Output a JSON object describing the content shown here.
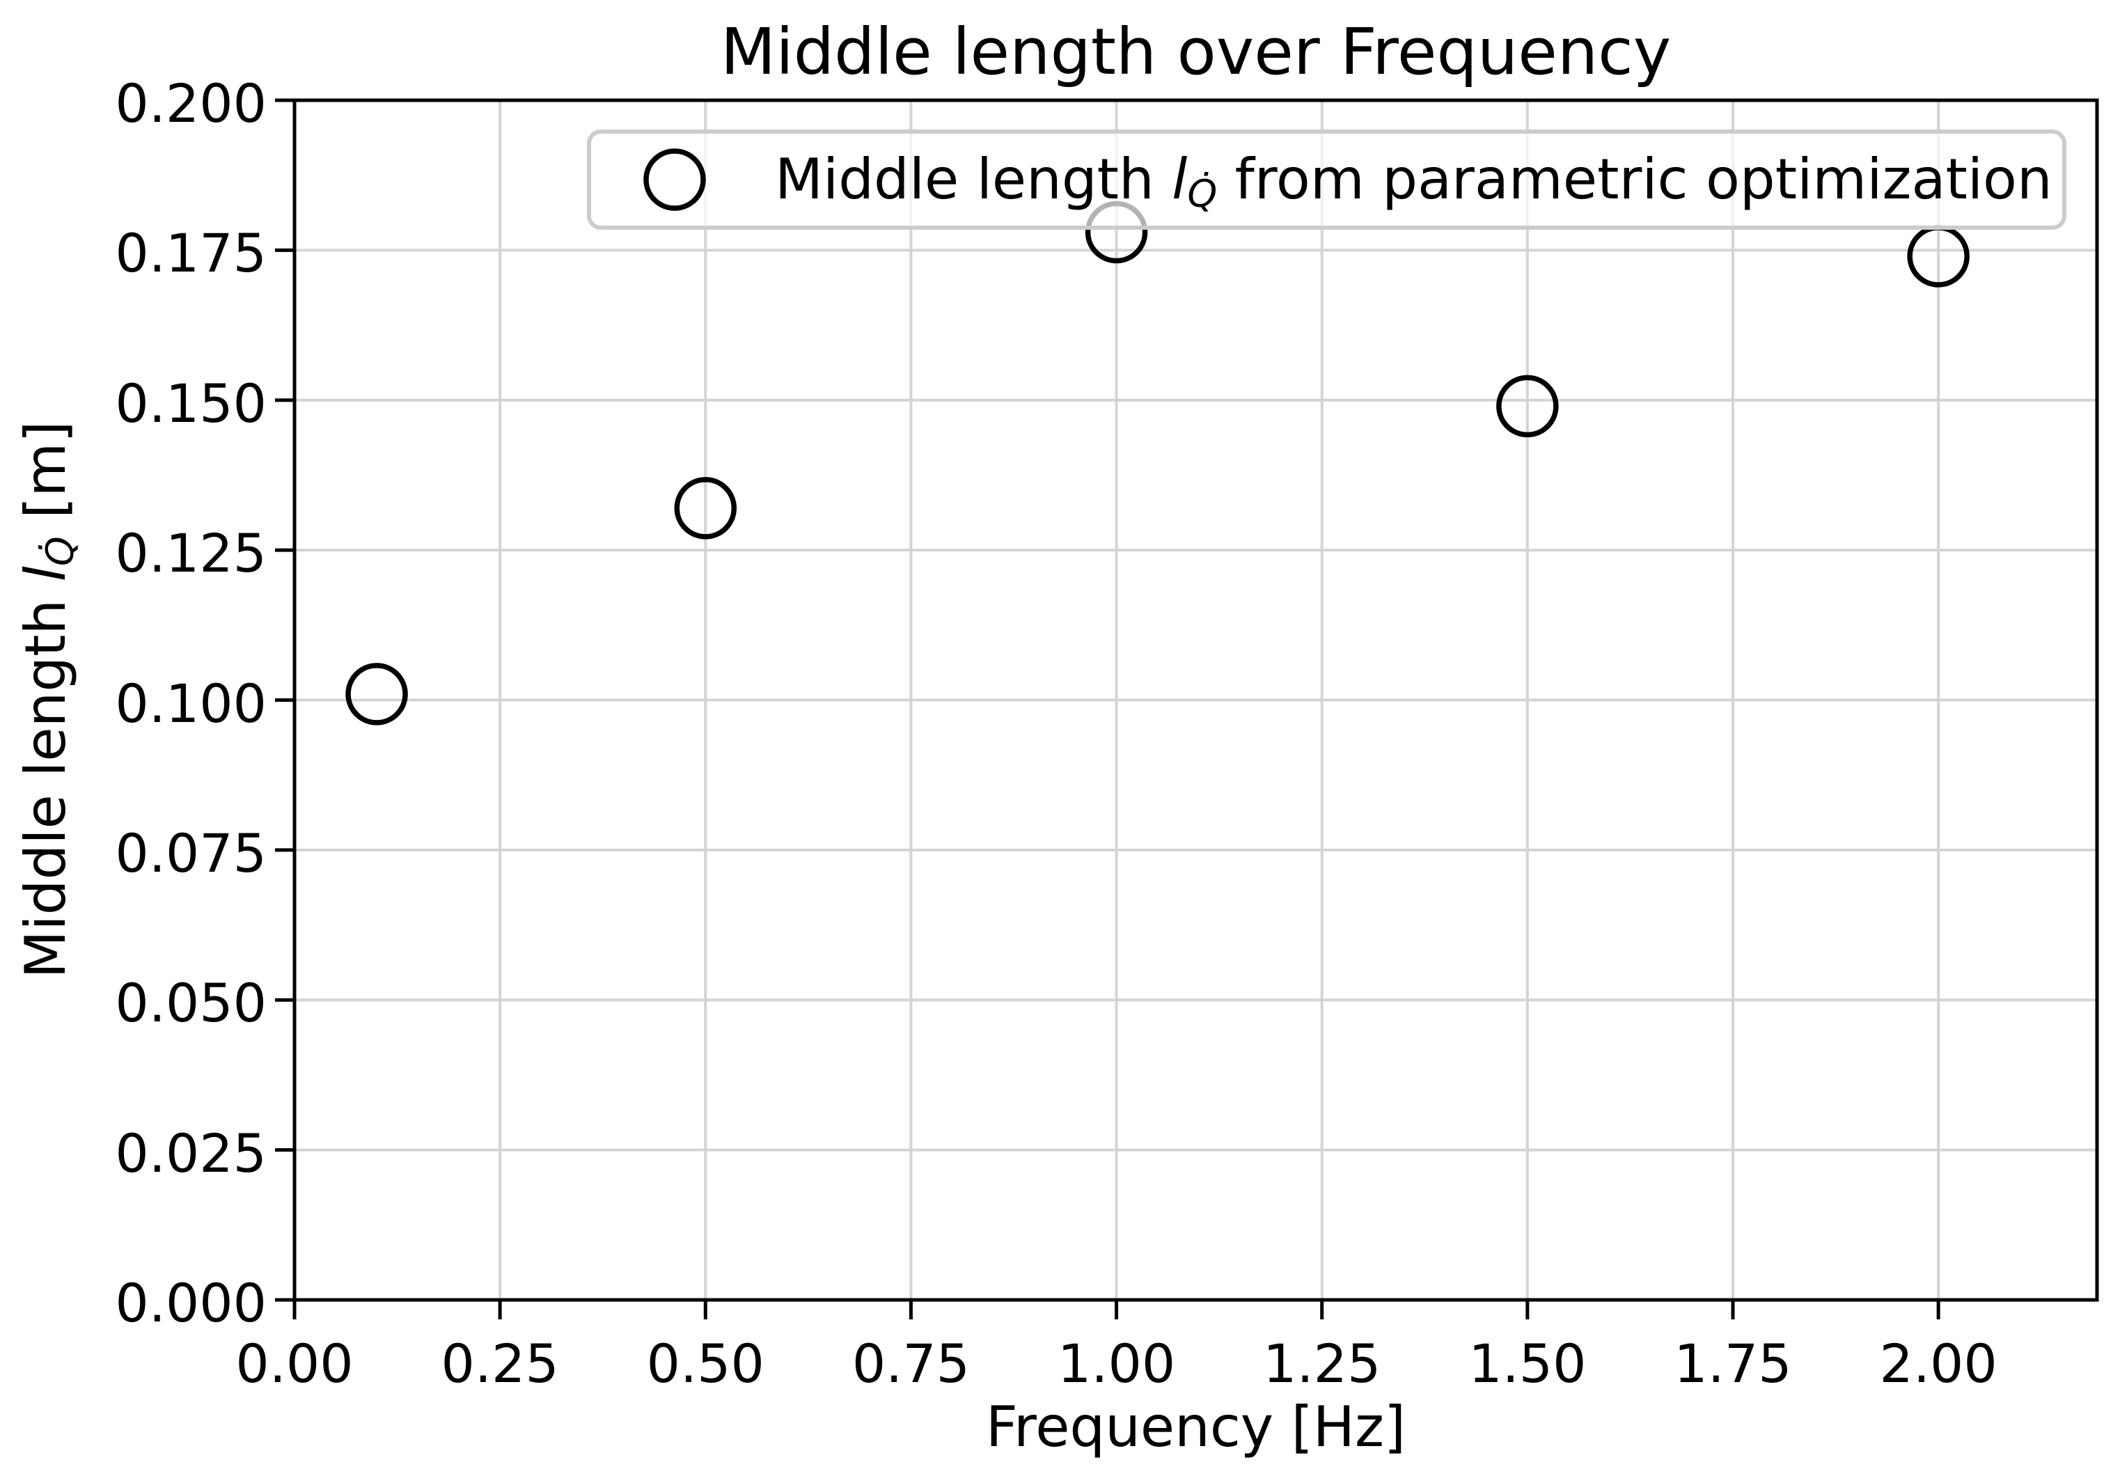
{
  "chart_data": {
    "type": "scatter",
    "title": "Middle length over Frequency",
    "xlabel": "Frequency [Hz]",
    "ylabel": "Middle length l_Q̇ [m]",
    "series": [
      {
        "name": "Middle length l_Q̇ from parametric optimization",
        "x": [
          0.1,
          0.5,
          1.0,
          1.5,
          2.0
        ],
        "y": [
          0.101,
          0.132,
          0.178,
          0.149,
          0.174
        ],
        "marker": "open-circle"
      }
    ],
    "xlim": [
      0,
      2.193
    ],
    "ylim": [
      0,
      0.2
    ],
    "xticks": [
      {
        "value": 0.0,
        "label": "0.00"
      },
      {
        "value": 0.25,
        "label": "0.25"
      },
      {
        "value": 0.5,
        "label": "0.50"
      },
      {
        "value": 0.75,
        "label": "0.75"
      },
      {
        "value": 1.0,
        "label": "1.00"
      },
      {
        "value": 1.25,
        "label": "1.25"
      },
      {
        "value": 1.5,
        "label": "1.50"
      },
      {
        "value": 1.75,
        "label": "1.75"
      },
      {
        "value": 2.0,
        "label": "2.00"
      }
    ],
    "yticks": [
      {
        "value": 0.0,
        "label": "0.000"
      },
      {
        "value": 0.025,
        "label": "0.025"
      },
      {
        "value": 0.05,
        "label": "0.050"
      },
      {
        "value": 0.075,
        "label": "0.075"
      },
      {
        "value": 0.1,
        "label": "0.100"
      },
      {
        "value": 0.125,
        "label": "0.125"
      },
      {
        "value": 0.15,
        "label": "0.150"
      },
      {
        "value": 0.175,
        "label": "0.175"
      },
      {
        "value": 0.2,
        "label": "0.200"
      }
    ],
    "grid": true,
    "legend_position": "upper center",
    "colors": {
      "marker": "#000000",
      "grid": "#d4d4d4",
      "spine": "#000000",
      "legend_edge": "#cccccc",
      "background": "#ffffff"
    }
  },
  "ylabel_parts": {
    "prefix": "Middle length ",
    "symbol": "l",
    "subscript": "Q̇",
    "suffix": " [m]"
  },
  "legend_parts": {
    "prefix": "Middle length ",
    "symbol": "l",
    "subscript": "Q̇",
    "suffix": " from parametric optimization"
  }
}
